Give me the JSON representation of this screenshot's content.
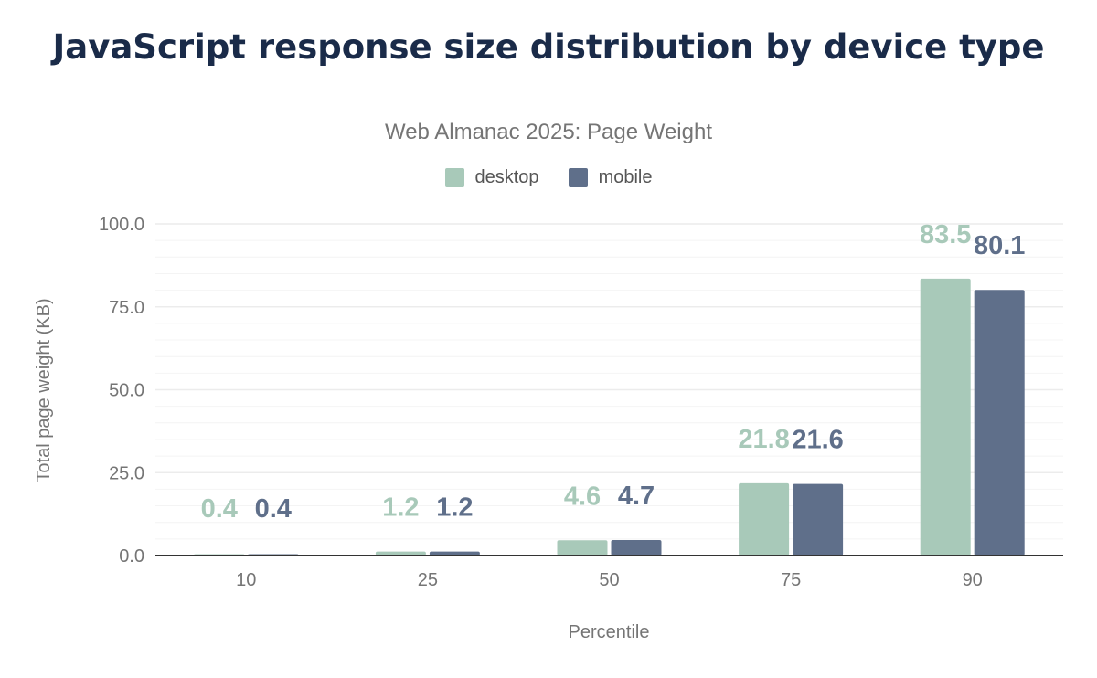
{
  "chart_data": {
    "type": "bar",
    "title": "JavaScript response size distribution by device type",
    "subtitle": "Web Almanac 2025: Page Weight",
    "xlabel": "Percentile",
    "ylabel": "Total page weight (KB)",
    "ylim": [
      0,
      100
    ],
    "yticks": [
      "0.0",
      "25.0",
      "50.0",
      "75.0",
      "100.0"
    ],
    "grid": true,
    "legend_position": "top",
    "categories": [
      "10",
      "25",
      "50",
      "75",
      "90"
    ],
    "series": [
      {
        "name": "desktop",
        "color": "#a8c9b9",
        "values": [
          0.4,
          1.2,
          4.6,
          21.8,
          83.5
        ]
      },
      {
        "name": "mobile",
        "color": "#5f6f8a",
        "values": [
          0.4,
          1.2,
          4.7,
          21.6,
          80.1
        ]
      }
    ]
  }
}
